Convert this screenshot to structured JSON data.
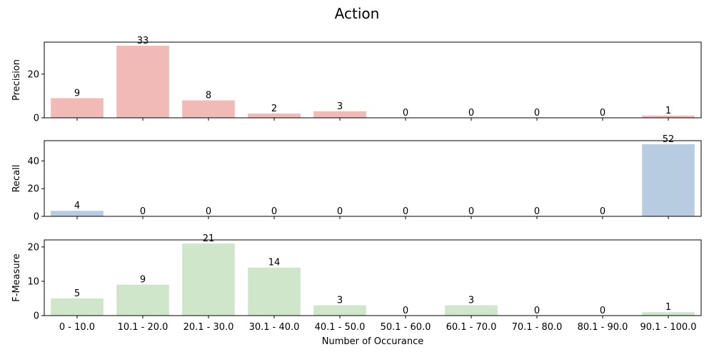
{
  "title": "Action",
  "xlabel": "Number of Occurance",
  "chart_data": [
    {
      "type": "bar",
      "ylabel": "Precision",
      "color": "#f1bab7",
      "ylim": [
        0,
        34.65
      ],
      "yticks": [
        0,
        20
      ],
      "categories": [
        "0 - 10.0",
        "10.1 - 20.0",
        "20.1 - 30.0",
        "30.1 - 40.0",
        "40.1 - 50.0",
        "50.1 - 60.0",
        "60.1 - 70.0",
        "70.1 - 80.0",
        "80.1 - 90.0",
        "90.1 - 100.0"
      ],
      "values": [
        9,
        33,
        8,
        2,
        3,
        0,
        0,
        0,
        0,
        1
      ],
      "show_xticklabels": false
    },
    {
      "type": "bar",
      "ylabel": "Recall",
      "color": "#b7cbe1",
      "ylim": [
        0,
        54.6
      ],
      "yticks": [
        0,
        20,
        40
      ],
      "categories": [
        "0 - 10.0",
        "10.1 - 20.0",
        "20.1 - 30.0",
        "30.1 - 40.0",
        "40.1 - 50.0",
        "50.1 - 60.0",
        "60.1 - 70.0",
        "70.1 - 80.0",
        "80.1 - 90.0",
        "90.1 - 100.0"
      ],
      "values": [
        4,
        0,
        0,
        0,
        0,
        0,
        0,
        0,
        0,
        52
      ],
      "show_xticklabels": false
    },
    {
      "type": "bar",
      "ylabel": "F-Measure",
      "color": "#d0e6cb",
      "ylim": [
        0,
        22.05
      ],
      "yticks": [
        0,
        10,
        20
      ],
      "categories": [
        "0 - 10.0",
        "10.1 - 20.0",
        "20.1 - 30.0",
        "30.1 - 40.0",
        "40.1 - 50.0",
        "50.1 - 60.0",
        "60.1 - 70.0",
        "70.1 - 80.0",
        "80.1 - 90.0",
        "90.1 - 100.0"
      ],
      "values": [
        5,
        9,
        21,
        14,
        3,
        0,
        3,
        0,
        0,
        1
      ],
      "show_xticklabels": true
    }
  ]
}
